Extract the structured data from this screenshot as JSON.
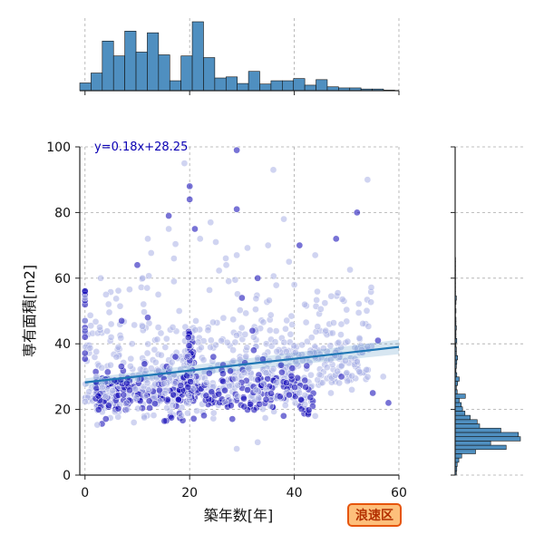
{
  "chart_data": {
    "type": "scatter",
    "title": "",
    "xlabel": "築年数[年]",
    "ylabel": "専有面積[m2]",
    "xlim": [
      -1,
      60
    ],
    "ylim": [
      0,
      100
    ],
    "x_ticks": [
      0,
      20,
      40,
      60
    ],
    "y_ticks": [
      0,
      20,
      40,
      60,
      80,
      100
    ],
    "grid": true,
    "regression": {
      "label": "y=0.18x+28.25",
      "slope": 0.18,
      "intercept": 28.25,
      "color": "#1f77b4"
    },
    "point_colors": {
      "dense": "#0a00b4",
      "faint": "#aab0e6"
    },
    "points_sample": [
      [
        0,
        56
      ],
      [
        0,
        54
      ],
      [
        0,
        47
      ],
      [
        0,
        44
      ],
      [
        3,
        60
      ],
      [
        4,
        55
      ],
      [
        5,
        46
      ],
      [
        5,
        42
      ],
      [
        6,
        36
      ],
      [
        7,
        47
      ],
      [
        8,
        28
      ],
      [
        8,
        22
      ],
      [
        9,
        40
      ],
      [
        10,
        64
      ],
      [
        11,
        60
      ],
      [
        12,
        48
      ],
      [
        12,
        72
      ],
      [
        14,
        55
      ],
      [
        14,
        45
      ],
      [
        16,
        79
      ],
      [
        16,
        75
      ],
      [
        17,
        66
      ],
      [
        17,
        59
      ],
      [
        18,
        50
      ],
      [
        19,
        95
      ],
      [
        20,
        88
      ],
      [
        20,
        84
      ],
      [
        21,
        75
      ],
      [
        22,
        72
      ],
      [
        24,
        77
      ],
      [
        25,
        71
      ],
      [
        27,
        64
      ],
      [
        29,
        99
      ],
      [
        29,
        81
      ],
      [
        29,
        67
      ],
      [
        30,
        54
      ],
      [
        32,
        44
      ],
      [
        33,
        60
      ],
      [
        35,
        70
      ],
      [
        36,
        93
      ],
      [
        38,
        78
      ],
      [
        39,
        65
      ],
      [
        40,
        58
      ],
      [
        41,
        70
      ],
      [
        42,
        52
      ],
      [
        44,
        67
      ],
      [
        46,
        44
      ],
      [
        48,
        72
      ],
      [
        52,
        80
      ],
      [
        54,
        90
      ],
      [
        56,
        41
      ],
      [
        58,
        22
      ],
      [
        29,
        8
      ],
      [
        33,
        10
      ],
      [
        44,
        18
      ],
      [
        47,
        25
      ],
      [
        49,
        30
      ],
      [
        51,
        26
      ],
      [
        55,
        25
      ],
      [
        57,
        30
      ]
    ],
    "x_marginal_hist": {
      "bin_start": -1,
      "bin_width": 2.15,
      "counts": [
        14,
        32,
        90,
        63,
        108,
        70,
        105,
        65,
        18,
        63,
        125,
        60,
        23,
        25,
        13,
        35,
        12,
        18,
        18,
        22,
        10,
        20,
        7,
        5,
        5,
        3,
        3,
        1
      ]
    },
    "y_marginal_hist": {
      "bin_start": 0,
      "bin_width": 1.3,
      "counts": [
        3,
        4,
        5,
        9,
        16,
        50,
        125,
        87,
        160,
        155,
        112,
        60,
        54,
        37,
        24,
        18,
        15,
        10,
        25,
        5,
        3,
        6,
        10,
        4,
        2,
        3,
        4,
        6,
        3,
        3,
        2,
        4,
        2,
        2,
        3,
        2,
        2,
        1,
        2,
        1,
        2,
        3,
        1,
        1,
        1,
        1,
        1,
        1,
        1,
        1,
        1
      ]
    }
  },
  "badge": {
    "label": "浪速区"
  }
}
